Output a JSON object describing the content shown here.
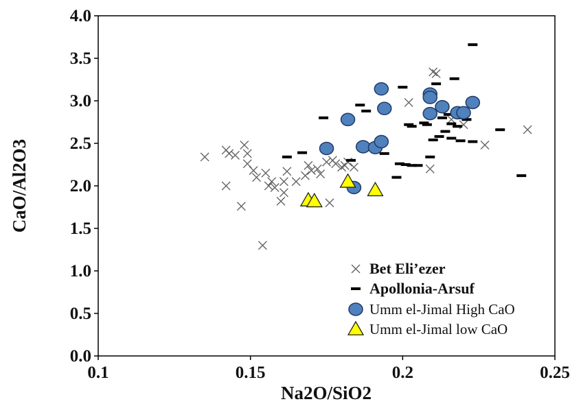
{
  "chart_data": {
    "type": "scatter",
    "xlabel": "Na2O/SiO2",
    "ylabel": "CaO/Al2O3",
    "xlim": [
      0.1,
      0.25
    ],
    "ylim": [
      0.0,
      4.0
    ],
    "x_ticks": [
      "0.1",
      "0.15",
      "0.2",
      "0.25"
    ],
    "x_tick_values": [
      0.1,
      0.15,
      0.2,
      0.25
    ],
    "y_ticks": [
      "0.0",
      "0.5",
      "1.0",
      "1.5",
      "2.0",
      "2.5",
      "3.0",
      "3.5",
      "4.0"
    ],
    "y_tick_values": [
      0,
      0.5,
      1.0,
      1.5,
      2.0,
      2.5,
      3.0,
      3.5,
      4.0
    ],
    "grid": false,
    "legend_position": "bottom-right",
    "series": [
      {
        "name": "Bet Eli’ezer",
        "marker": "x",
        "color": "#666666",
        "points": [
          [
            0.135,
            2.34
          ],
          [
            0.142,
            2.42
          ],
          [
            0.143,
            2.38
          ],
          [
            0.145,
            2.36
          ],
          [
            0.142,
            2.0
          ],
          [
            0.148,
            2.48
          ],
          [
            0.149,
            2.38
          ],
          [
            0.149,
            2.26
          ],
          [
            0.151,
            2.18
          ],
          [
            0.152,
            2.1
          ],
          [
            0.147,
            1.76
          ],
          [
            0.154,
            1.3
          ],
          [
            0.155,
            2.15
          ],
          [
            0.156,
            2.0
          ],
          [
            0.157,
            2.05
          ],
          [
            0.158,
            1.98
          ],
          [
            0.16,
            1.82
          ],
          [
            0.161,
            1.92
          ],
          [
            0.161,
            2.05
          ],
          [
            0.162,
            2.17
          ],
          [
            0.165,
            2.05
          ],
          [
            0.168,
            2.12
          ],
          [
            0.169,
            2.24
          ],
          [
            0.17,
            2.18
          ],
          [
            0.172,
            2.2
          ],
          [
            0.173,
            2.14
          ],
          [
            0.175,
            2.28
          ],
          [
            0.176,
            1.8
          ],
          [
            0.177,
            2.3
          ],
          [
            0.178,
            2.26
          ],
          [
            0.18,
            2.22
          ],
          [
            0.181,
            2.24
          ],
          [
            0.182,
            2.28
          ],
          [
            0.184,
            2.22
          ],
          [
            0.202,
            2.98
          ],
          [
            0.209,
            2.2
          ],
          [
            0.21,
            3.34
          ],
          [
            0.211,
            3.32
          ],
          [
            0.216,
            2.78
          ],
          [
            0.22,
            2.72
          ],
          [
            0.227,
            2.48
          ],
          [
            0.241,
            2.66
          ]
        ]
      },
      {
        "name": "Apollonia-Arsuf",
        "marker": "dash",
        "color": "#000000",
        "points": [
          [
            0.162,
            2.34
          ],
          [
            0.167,
            2.39
          ],
          [
            0.174,
            2.8
          ],
          [
            0.183,
            2.3
          ],
          [
            0.186,
            2.95
          ],
          [
            0.188,
            2.88
          ],
          [
            0.194,
            2.38
          ],
          [
            0.198,
            2.1
          ],
          [
            0.199,
            2.26
          ],
          [
            0.2,
            3.16
          ],
          [
            0.201,
            2.25
          ],
          [
            0.202,
            2.72
          ],
          [
            0.203,
            2.7
          ],
          [
            0.203,
            2.24
          ],
          [
            0.205,
            2.24
          ],
          [
            0.207,
            2.74
          ],
          [
            0.208,
            2.72
          ],
          [
            0.209,
            2.34
          ],
          [
            0.21,
            2.54
          ],
          [
            0.211,
            3.2
          ],
          [
            0.212,
            2.58
          ],
          [
            0.213,
            2.9
          ],
          [
            0.213,
            2.8
          ],
          [
            0.214,
            2.64
          ],
          [
            0.215,
            2.84
          ],
          [
            0.216,
            2.56
          ],
          [
            0.216,
            2.73
          ],
          [
            0.217,
            3.26
          ],
          [
            0.218,
            2.7
          ],
          [
            0.219,
            2.8
          ],
          [
            0.219,
            2.53
          ],
          [
            0.221,
            2.78
          ],
          [
            0.223,
            2.52
          ],
          [
            0.223,
            3.66
          ],
          [
            0.232,
            2.66
          ],
          [
            0.239,
            2.12
          ]
        ]
      },
      {
        "name": "Umm el-Jimal High CaO",
        "marker": "circle",
        "color": "#4f81bd",
        "points": [
          [
            0.175,
            2.44
          ],
          [
            0.182,
            2.78
          ],
          [
            0.184,
            1.98
          ],
          [
            0.187,
            2.46
          ],
          [
            0.191,
            2.45
          ],
          [
            0.193,
            2.52
          ],
          [
            0.193,
            3.14
          ],
          [
            0.194,
            2.91
          ],
          [
            0.209,
            3.08
          ],
          [
            0.209,
            3.04
          ],
          [
            0.209,
            2.85
          ],
          [
            0.213,
            2.93
          ],
          [
            0.218,
            2.86
          ],
          [
            0.22,
            2.86
          ],
          [
            0.223,
            2.98
          ]
        ]
      },
      {
        "name": "Umm el-Jimal low CaO",
        "marker": "triangle",
        "color": "#ffff00",
        "points": [
          [
            0.169,
            1.83
          ],
          [
            0.171,
            1.82
          ],
          [
            0.182,
            2.05
          ],
          [
            0.191,
            1.95
          ]
        ]
      }
    ]
  }
}
